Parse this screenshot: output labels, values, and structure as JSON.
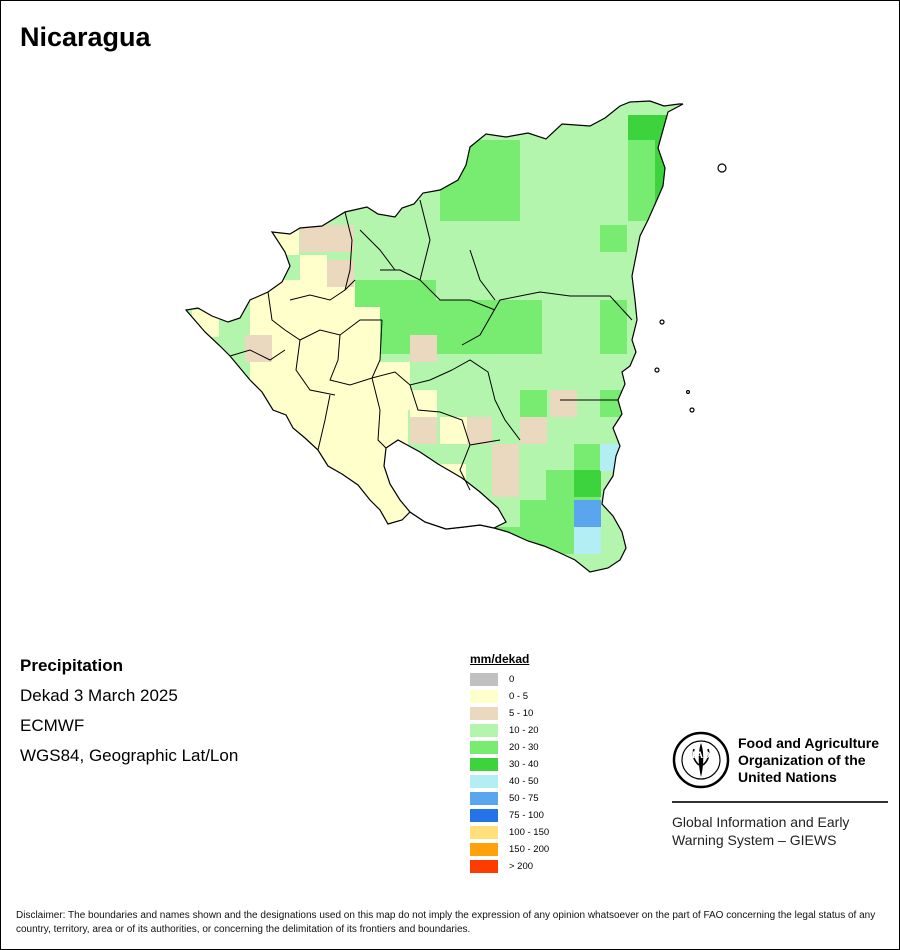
{
  "title": "Nicaragua",
  "info": {
    "variable": "Precipitation",
    "period": "Dekad 3 March 2025",
    "source": "ECMWF",
    "projection": "WGS84, Geographic Lat/Lon"
  },
  "legend": {
    "title": "mm/dekad",
    "items": [
      {
        "label": "0",
        "color": "#c0c0c0"
      },
      {
        "label": "0 - 5",
        "color": "#ffffcc"
      },
      {
        "label": "5 - 10",
        "color": "#ebd9bf"
      },
      {
        "label": "10 - 20",
        "color": "#b3f5ac"
      },
      {
        "label": "20 - 30",
        "color": "#77ec70"
      },
      {
        "label": "30 - 40",
        "color": "#3cd33c"
      },
      {
        "label": "40 - 50",
        "color": "#b2eef4"
      },
      {
        "label": "50 - 75",
        "color": "#5aa6ee"
      },
      {
        "label": "75 - 100",
        "color": "#2573e8"
      },
      {
        "label": "100 - 150",
        "color": "#ffe07a"
      },
      {
        "label": "150 - 200",
        "color": "#ffa10c"
      },
      {
        "label": "> 200",
        "color": "#ff3c00"
      }
    ]
  },
  "fao": {
    "name_line1": "Food and Agriculture",
    "name_line2": "Organization of the",
    "name_line3": "United Nations",
    "logo_text": "FAO",
    "logo_motto": "FIAT PANIS",
    "giews_line1": "Global Information and Early",
    "giews_line2": "Warning System – GIEWS"
  },
  "disclaimer": "Disclaimer: The boundaries and names shown and the designations used on this map do not imply the expression of any opinion whatsoever on the part of FAO concerning the legal status of any country, territory, area or of its authorities, or concerning the delimitation of its frontiers and boundaries."
}
